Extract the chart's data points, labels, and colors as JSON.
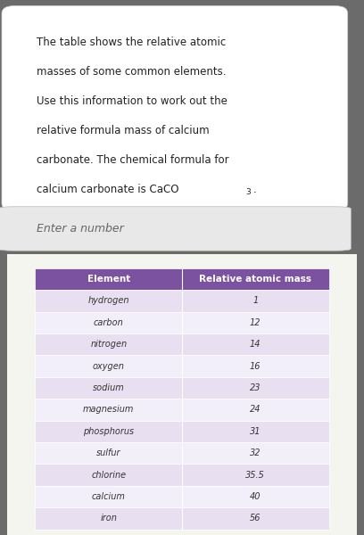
{
  "title_text": "The table shows the relative atomic\nmasses of some common elements.\nUse this information to work out the\nrelative formula mass of calcium\ncarbonate. The chemical formula for\ncalcium carbonate is CaCO₃.",
  "input_placeholder": "Enter a number",
  "col_headers": [
    "Element",
    "Relative atomic mass"
  ],
  "rows": [
    [
      "hydrogen",
      "1"
    ],
    [
      "carbon",
      "12"
    ],
    [
      "nitrogen",
      "14"
    ],
    [
      "oxygen",
      "16"
    ],
    [
      "sodium",
      "23"
    ],
    [
      "magnesium",
      "24"
    ],
    [
      "phosphorus",
      "31"
    ],
    [
      "sulfur",
      "32"
    ],
    [
      "chlorine",
      "35.5"
    ],
    [
      "calcium",
      "40"
    ],
    [
      "iron",
      "56"
    ]
  ],
  "header_bg": "#7B52A0",
  "header_fg": "#ffffff",
  "row_bg_odd": "#E8E0F0",
  "row_bg_even": "#F3EFFA",
  "text_color": "#333333",
  "card_bg": "#ffffff",
  "input_bg": "#E8E8E8",
  "input_fg": "#666666",
  "page_bg_color": "#6B6B6B",
  "table_section_bg": "#F5F5F0"
}
